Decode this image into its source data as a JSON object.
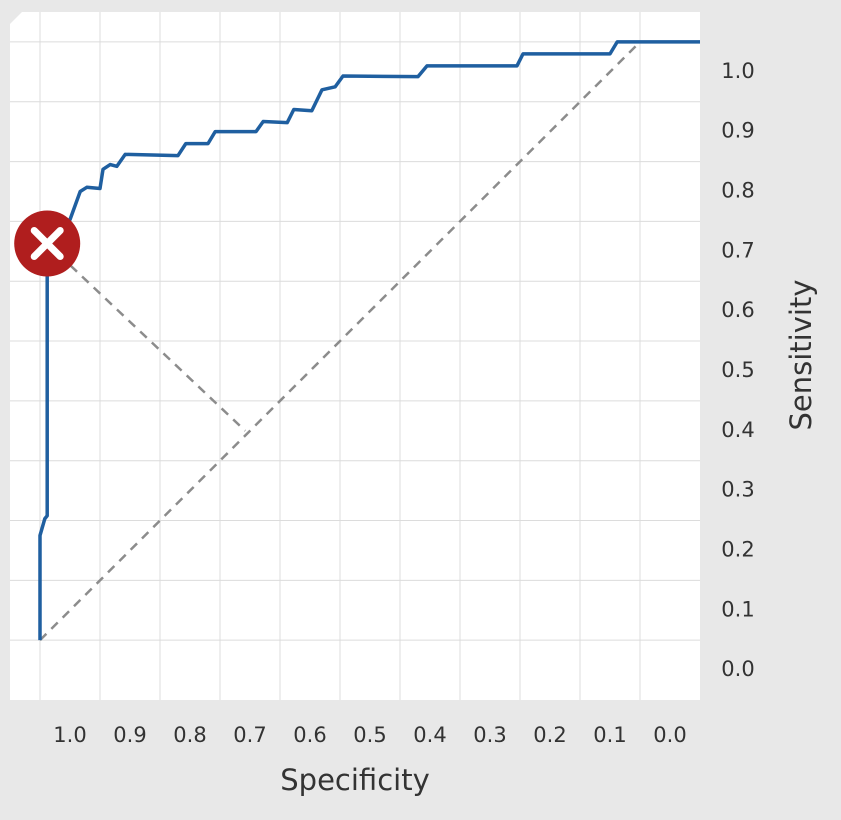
{
  "chart_data": {
    "type": "line",
    "x_label": "Specificity",
    "y_label": "Sensitivity",
    "xlim": [
      1.05,
      -0.1
    ],
    "ylim": [
      -0.1,
      1.05
    ],
    "xticks": [
      {
        "value": 1,
        "label": "1.0"
      },
      0.9,
      0.8,
      0.7,
      0.6,
      0.5,
      0.4,
      0.3,
      0.2,
      0.1,
      {
        "value": 0,
        "label": "0.0"
      }
    ],
    "yticks": [
      {
        "value": 0,
        "label": "0.0"
      },
      0.1,
      0.2,
      0.3,
      0.4,
      0.5,
      0.6,
      0.7,
      0.8,
      0.9,
      {
        "value": 1,
        "label": "1.0"
      }
    ],
    "grid": true,
    "color": "#1f5fa0",
    "x": [
      1.0,
      1.0,
      0.992,
      0.988,
      0.988,
      0.95,
      0.933,
      0.922,
      0.9,
      0.895,
      0.883,
      0.872,
      0.858,
      0.77,
      0.757,
      0.72,
      0.708,
      0.64,
      0.628,
      0.588,
      0.577,
      0.547,
      0.53,
      0.508,
      0.495,
      0.37,
      0.355,
      0.205,
      0.195,
      0.05,
      0.038,
      -0.1
    ],
    "values": [
      0.0,
      0.175,
      0.203,
      0.208,
      0.663,
      0.703,
      0.75,
      0.757,
      0.755,
      0.787,
      0.795,
      0.792,
      0.812,
      0.81,
      0.83,
      0.83,
      0.85,
      0.85,
      0.867,
      0.865,
      0.887,
      0.885,
      0.92,
      0.925,
      0.943,
      0.942,
      0.96,
      0.96,
      0.98,
      0.98,
      1.0,
      1.0
    ],
    "reference_lines": [
      {
        "x": [
          1.0,
          0.0
        ],
        "values": [
          0.0,
          1.0
        ],
        "color": "#8c8c8c"
      },
      {
        "x": [
          0.988,
          0.658
        ],
        "values": [
          0.663,
          0.35
        ],
        "color": "#8c8c8c"
      }
    ],
    "marker": {
      "x": 0.988,
      "value": 0.663,
      "color": "#b01e1e"
    }
  }
}
